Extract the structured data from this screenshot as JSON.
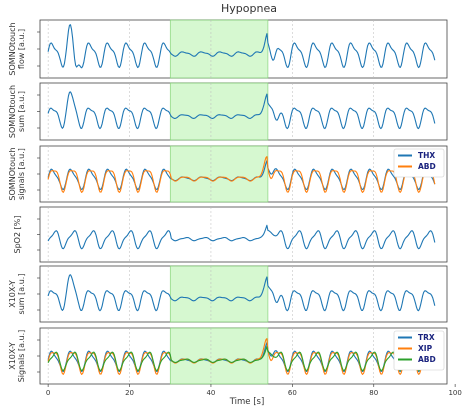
{
  "title": "Hypopnea",
  "xlabel": "Time [s]",
  "chart_data": [
    {
      "type": "line",
      "ylabel": [
        "SOMNOtouch",
        "flow [a.u.]"
      ],
      "xlim": [
        -2,
        98
      ],
      "shaded_region": [
        30,
        54
      ],
      "series": [
        {
          "name": "",
          "color": "#1f77b4",
          "pattern": "flow"
        }
      ]
    },
    {
      "type": "line",
      "ylabel": [
        "SOMNOtouch",
        "sum [a.u.]"
      ],
      "xlim": [
        -2,
        98
      ],
      "shaded_region": [
        30,
        54
      ],
      "series": [
        {
          "name": "",
          "color": "#1f77b4",
          "pattern": "sum"
        }
      ]
    },
    {
      "type": "line",
      "ylabel": [
        "SOMNOtouch",
        "signals [a.u.]"
      ],
      "xlim": [
        -2,
        98
      ],
      "shaded_region": [
        30,
        54
      ],
      "legend": "top-right",
      "series": [
        {
          "name": "THX",
          "color": "#1f77b4",
          "pattern": "thx"
        },
        {
          "name": "ABD",
          "color": "#ff7f0e",
          "pattern": "abd"
        }
      ]
    },
    {
      "type": "line",
      "ylabel": [
        "SpO2 [%]"
      ],
      "xlim": [
        -2,
        98
      ],
      "ylim": [
        91.7,
        96.3
      ],
      "yticks": [
        92,
        94,
        96
      ],
      "series": [
        {
          "name": "",
          "color": "#1f77b4",
          "steps": [
            {
              "x0": 0,
              "x1": 4,
              "y": 95
            },
            {
              "x0": 4,
              "x1": 11,
              "y": 94
            },
            {
              "x0": 11,
              "x1": 21,
              "y": 93
            },
            {
              "x0": 21,
              "x1": 26,
              "y": 92
            },
            {
              "x0": 26,
              "x1": 37,
              "y": 93
            },
            {
              "x0": 37,
              "x1": 40,
              "y": 94
            },
            {
              "x0": 40,
              "x1": 47,
              "y": 95
            },
            {
              "x0": 47,
              "x1": 72,
              "y": 96
            },
            {
              "x0": 72,
              "x1": 77,
              "y": 95
            },
            {
              "x0": 77,
              "x1": 92,
              "y": 94
            },
            {
              "x0": 92,
              "x1": 95,
              "y": 94
            }
          ]
        }
      ]
    },
    {
      "type": "line",
      "ylabel": [
        "X10X-Y",
        "sum [a.u.]"
      ],
      "xlim": [
        -2,
        98
      ],
      "shaded_region": [
        30,
        54
      ],
      "series": [
        {
          "name": "",
          "color": "#1f77b4",
          "pattern": "sum"
        }
      ]
    },
    {
      "type": "line",
      "ylabel": [
        "X10X-Y",
        "Signals [a.u.]"
      ],
      "xlim": [
        -2,
        98
      ],
      "shaded_region": [
        30,
        54
      ],
      "legend": "top-right",
      "xticks": [
        0,
        20,
        40,
        60,
        80,
        100
      ],
      "series": [
        {
          "name": "TRX",
          "color": "#1f77b4",
          "pattern": "thx"
        },
        {
          "name": "XIP",
          "color": "#ff7f0e",
          "pattern": "abd"
        },
        {
          "name": "ABD",
          "color": "#2ca02c",
          "pattern": "abd2"
        }
      ]
    }
  ]
}
